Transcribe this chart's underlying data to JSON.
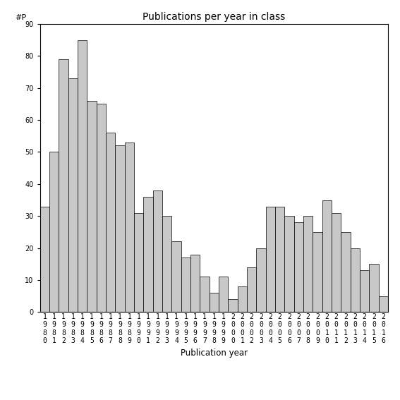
{
  "title": "Publications per year in class",
  "xlabel": "Publication year",
  "ylabel": "#P",
  "ylim": [
    0,
    90
  ],
  "yticks": [
    0,
    10,
    20,
    30,
    40,
    50,
    60,
    70,
    80,
    90
  ],
  "years": [
    1980,
    1981,
    1982,
    1983,
    1984,
    1985,
    1986,
    1987,
    1988,
    1989,
    1990,
    1991,
    1992,
    1993,
    1994,
    1995,
    1996,
    1997,
    1998,
    1999,
    2000,
    2001,
    2002,
    2003,
    2004,
    2005,
    2006,
    2007,
    2008,
    2009,
    2010,
    2011,
    2012,
    2013,
    2014,
    2015,
    2016
  ],
  "values": [
    33,
    50,
    79,
    73,
    85,
    66,
    65,
    56,
    52,
    53,
    31,
    36,
    38,
    30,
    22,
    17,
    18,
    11,
    6,
    11,
    4,
    8,
    14,
    20,
    33,
    33,
    30,
    28,
    30,
    25,
    35,
    31,
    25,
    20,
    13,
    15,
    5
  ],
  "bar_color": "#c8c8c8",
  "bar_edge_color": "#000000",
  "bar_edge_width": 0.5,
  "bg_color": "#ffffff",
  "title_fontsize": 10,
  "label_fontsize": 8.5,
  "tick_fontsize": 7,
  "ylabel_fontsize": 8
}
